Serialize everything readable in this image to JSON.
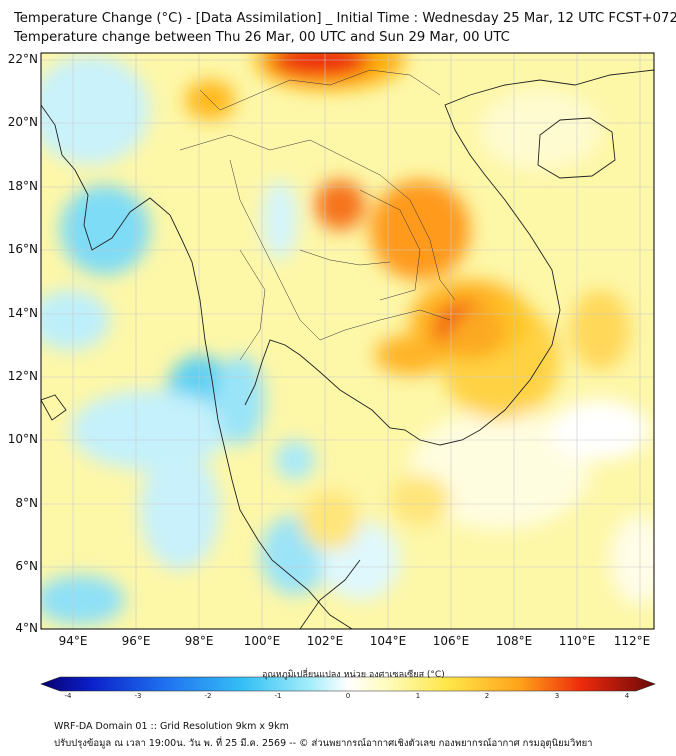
{
  "header": {
    "title_line1": "Temperature Change (°C) - [Data Assimilation] _ Initial Time : Wednesday 25 Mar, 12 UTC FCST+072",
    "title_line2": "Temperature change between Thu 26 Mar, 00 UTC and Sun 29 Mar, 00 UTC"
  },
  "map": {
    "lat_labels": [
      "22°N",
      "20°N",
      "18°N",
      "16°N",
      "14°N",
      "12°N",
      "10°N",
      "8°N",
      "6°N",
      "4°N"
    ],
    "lon_labels": [
      "94°E",
      "96°E",
      "98°E",
      "100°E",
      "102°E",
      "104°E",
      "106°E",
      "108°E",
      "110°E",
      "112°E"
    ],
    "extent": {
      "lon_min": 93,
      "lon_max": 112.5,
      "lat_min": 4,
      "lat_max": 22.2
    }
  },
  "colorbar": {
    "title": "อุณหภูมิเปลี่ยนแปลง หน่วย องศาเซลเซียส (°C)",
    "ticks": [
      "-4",
      "-3",
      "-2",
      "-1",
      "0",
      "1",
      "2",
      "3",
      "4"
    ],
    "range": [
      -4,
      4
    ],
    "colors": [
      "#08006e",
      "#0a1fc8",
      "#1f70ef",
      "#35c0f5",
      "#a6eefa",
      "#ffffff",
      "#fffcc0",
      "#ffe74a",
      "#ffa21a",
      "#ee2b0c",
      "#a0150a",
      "#6a0a07"
    ]
  },
  "footer": {
    "line1": "WRF-DA Domain 01 :: Grid Resolution 9km x 9km",
    "line2": "ปรับปรุงข้อมูล ณ เวลา 19:00น. วัน พ. ที่ 25 มี.ค. 2569 -- © ส่วนพยากรณ์อากาศเชิงตัวเลข กองพยากรณ์อากาศ กรมอุตุนิยมวิทยา"
  }
}
